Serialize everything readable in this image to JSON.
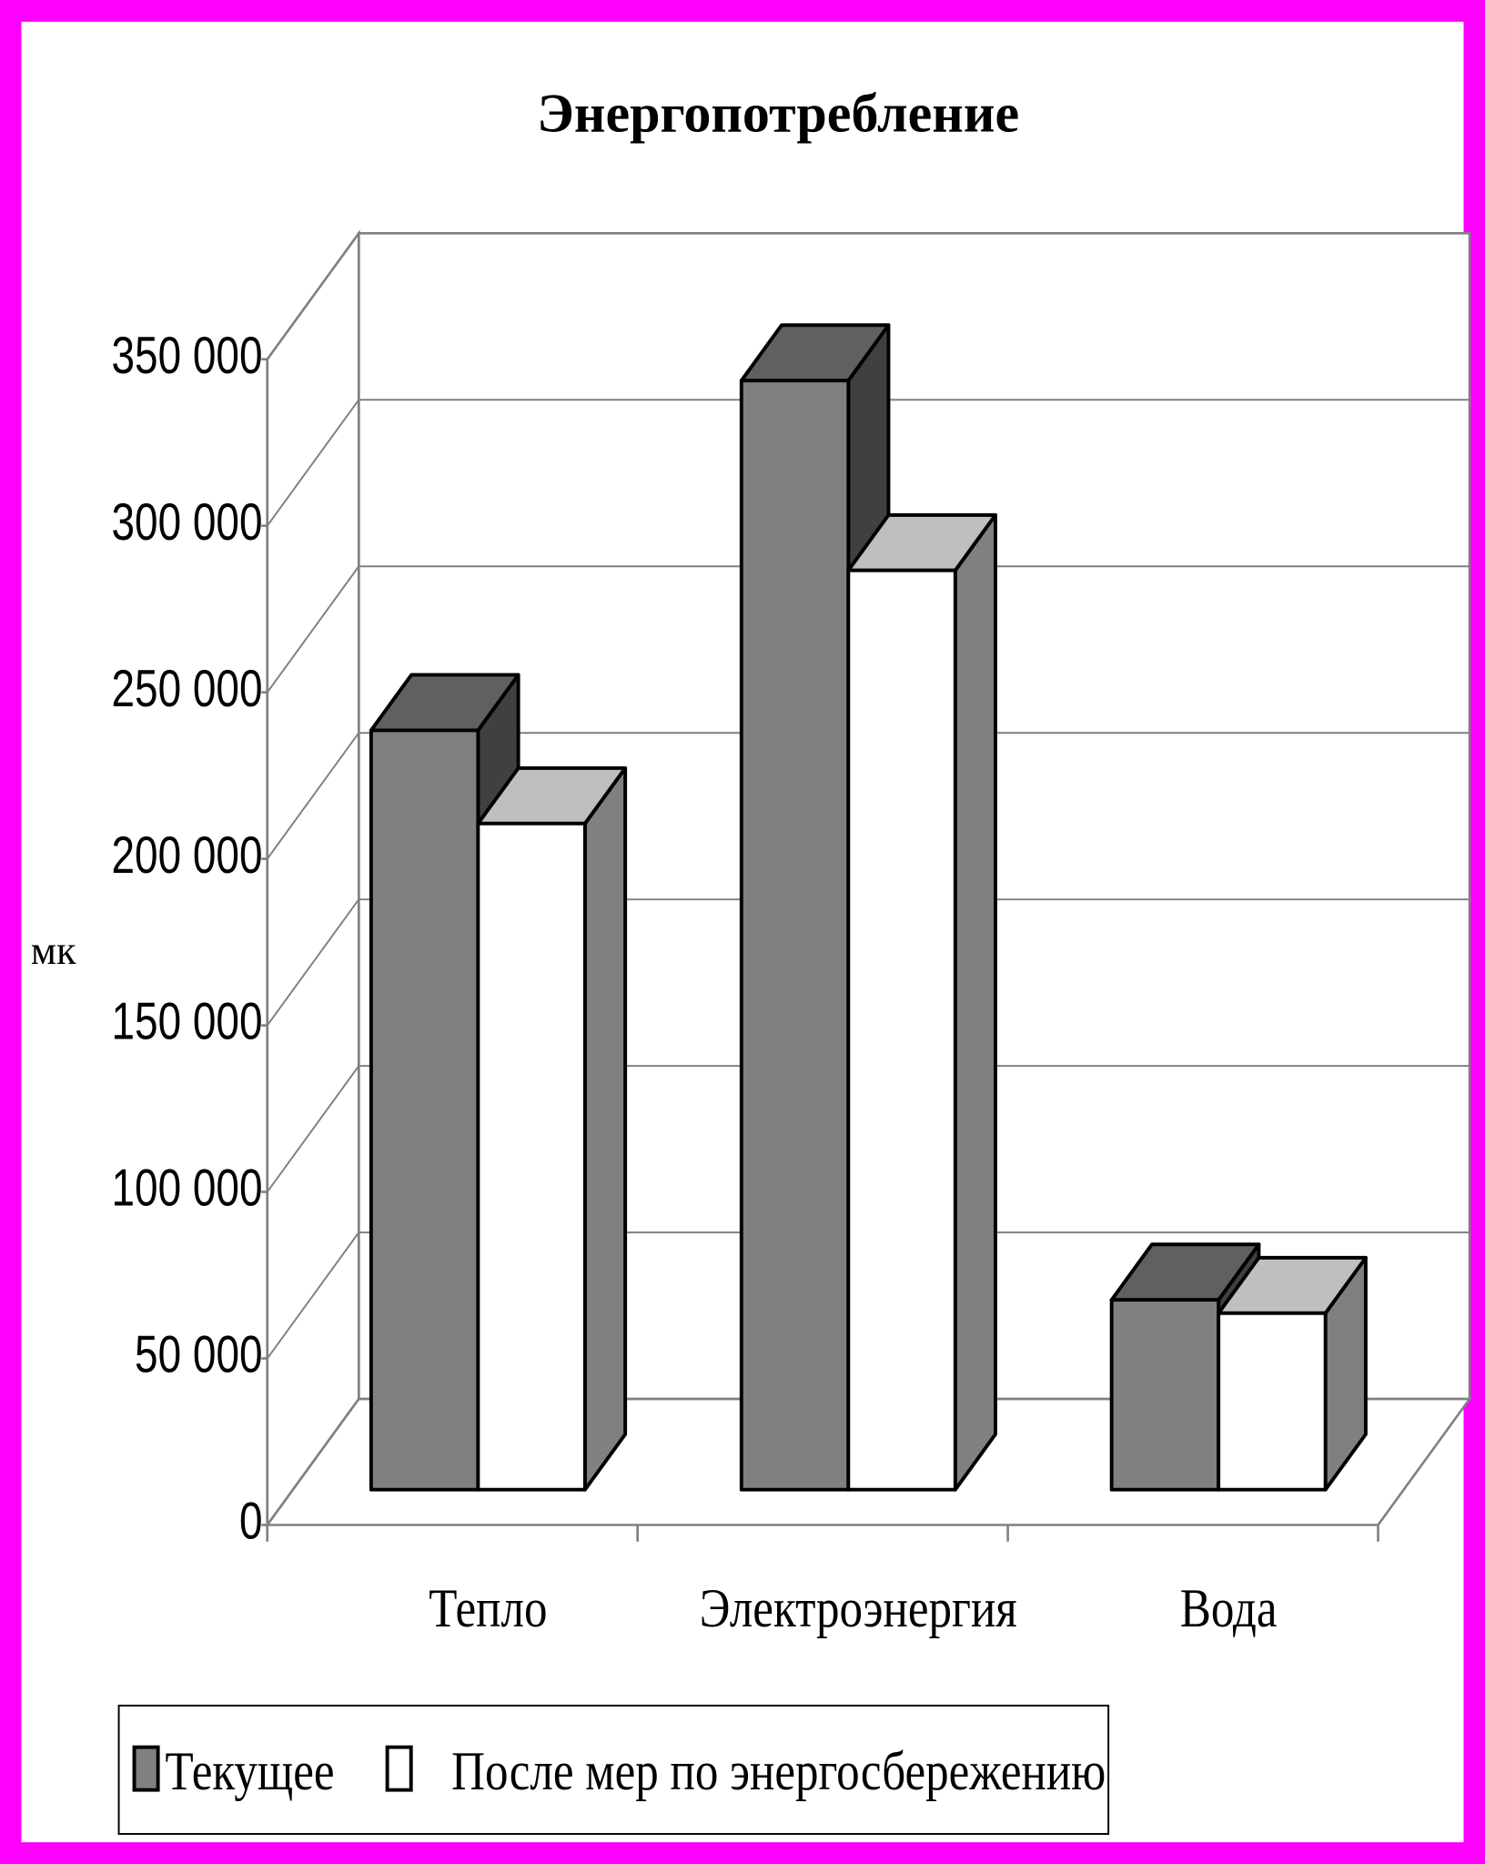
{
  "chart_data": {
    "type": "bar3d",
    "title": "Энергопотребление",
    "y_label": "мк",
    "categories": [
      "Тепло",
      "Электроэнергия",
      "Вода"
    ],
    "series": [
      {
        "name": "Текущее",
        "color": "#808080",
        "values": [
          228000,
          333000,
          57000
        ]
      },
      {
        "name": "После мер по энергосбережению",
        "color": "#ffffff",
        "values": [
          200000,
          276000,
          53000
        ]
      }
    ],
    "ylim": [
      0,
      350000
    ],
    "yticks": [
      {
        "value": 0,
        "label": "0"
      },
      {
        "value": 50000,
        "label": "50 000"
      },
      {
        "value": 100000,
        "label": "100 000"
      },
      {
        "value": 150000,
        "label": "150 000"
      },
      {
        "value": 200000,
        "label": "200 000"
      },
      {
        "value": 250000,
        "label": "250 000"
      },
      {
        "value": 300000,
        "label": "300 000"
      },
      {
        "value": 350000,
        "label": "350 000"
      }
    ],
    "grid": true,
    "legend": "bottom"
  }
}
